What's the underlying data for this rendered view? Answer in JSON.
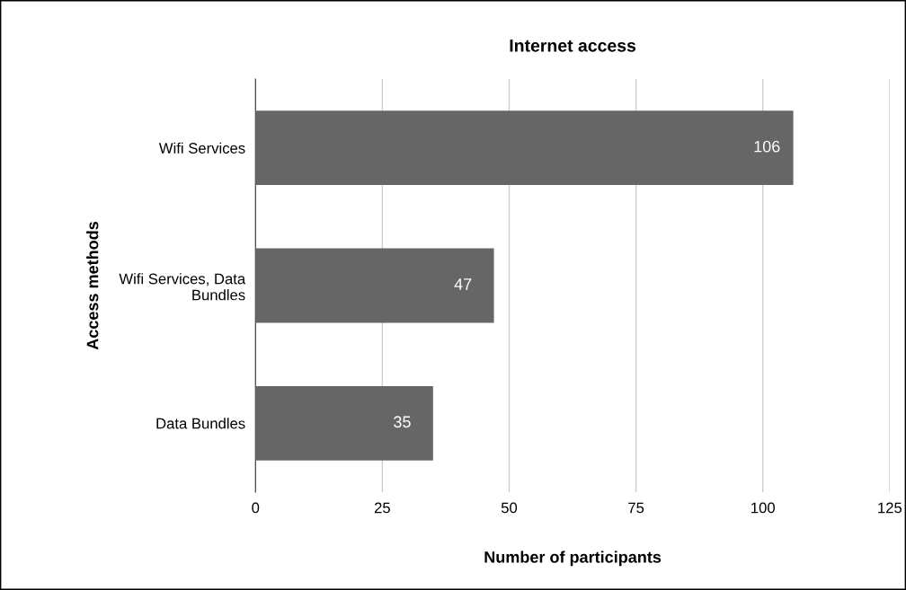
{
  "chart_data": {
    "type": "bar",
    "orientation": "horizontal",
    "title": "Internet access",
    "xlabel": "Number of participants",
    "ylabel": "Access methods",
    "categories": [
      "Wifi Services",
      "Wifi Services, Data\nBundles",
      "Data Bundles"
    ],
    "values": [
      106,
      47,
      35
    ],
    "color": "#666666",
    "xlim": [
      0,
      125
    ],
    "xticks": [
      0,
      25,
      50,
      75,
      100,
      125
    ],
    "grid": "x",
    "data_labels": true
  }
}
